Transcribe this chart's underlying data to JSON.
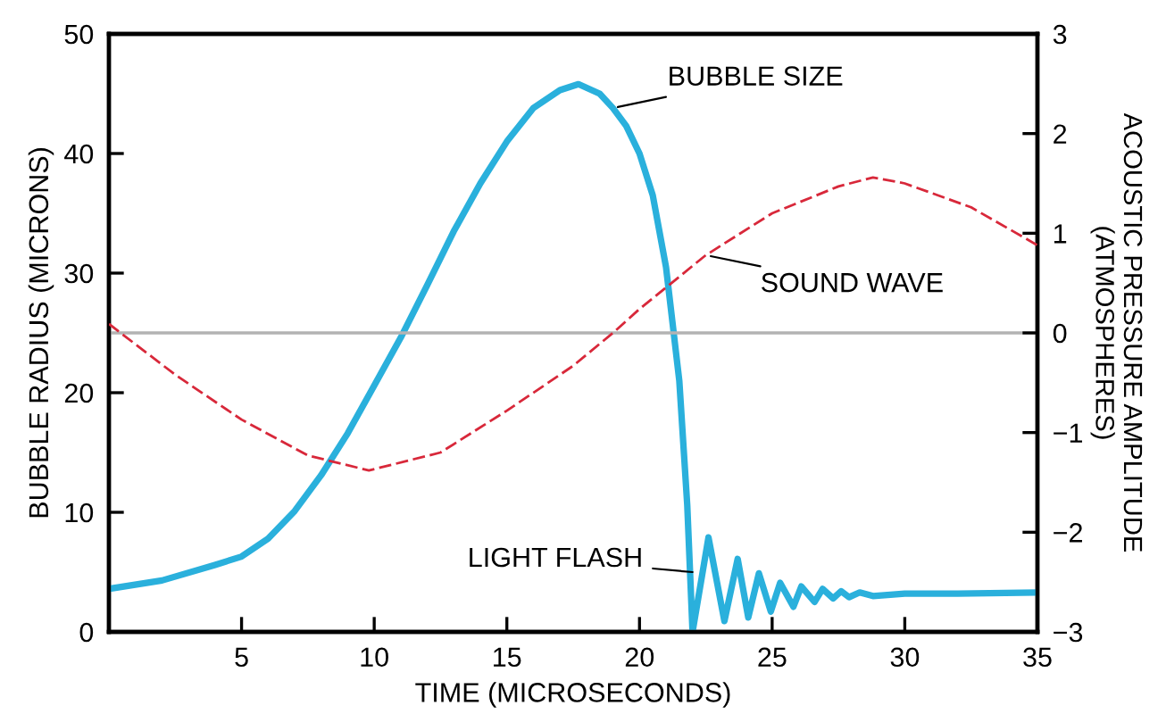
{
  "chart_data": {
    "type": "line",
    "xlabel": "TIME (MICROSECONDS)",
    "ylabel": "BUBBLE RADIUS (MICRONS)",
    "y2label": "ACOUSTIC PRESSURE AMPLITUDE\n(ATMOSPHERES)",
    "xlim": [
      0,
      35
    ],
    "xticks": [
      5,
      10,
      15,
      20,
      25,
      30,
      35
    ],
    "ylim": [
      0,
      50
    ],
    "yticks": [
      0,
      10,
      20,
      30,
      40,
      50
    ],
    "y2lim": [
      -3,
      3
    ],
    "y2ticks": [
      {
        "value": -3,
        "label": "−3"
      },
      {
        "value": -2,
        "label": "−2"
      },
      {
        "value": -1,
        "label": "−1"
      },
      0,
      1,
      2,
      3
    ],
    "series": [
      {
        "name": "BUBBLE SIZE",
        "color": "#2ab0dc",
        "line_style": "solid",
        "x": [
          0,
          2,
          4,
          5,
          6,
          7,
          8,
          9,
          10,
          11,
          12,
          13,
          14,
          15,
          16,
          17,
          17.7,
          18.5,
          19,
          19.5,
          20,
          20.5,
          21,
          21.5,
          21.8,
          22,
          22.6,
          23.2,
          23.7,
          24.1,
          24.5,
          24.95,
          25.3,
          25.8,
          26.1,
          26.6,
          26.9,
          27.3,
          27.6,
          27.9,
          28.3,
          28.8,
          30,
          32,
          35
        ],
        "values": [
          3.6,
          4.3,
          5.6,
          6.3,
          7.8,
          10.1,
          13.1,
          16.6,
          20.6,
          24.6,
          29,
          33.5,
          37.5,
          41,
          43.8,
          45.3,
          45.8,
          45,
          43.8,
          42.3,
          40,
          36.5,
          30.5,
          21,
          10.6,
          0,
          7.9,
          0.9,
          6.1,
          1.2,
          4.9,
          1.7,
          4.1,
          2.1,
          3.8,
          2.5,
          3.6,
          2.8,
          3.4,
          2.9,
          3.3,
          3.0,
          3.2,
          3.2,
          3.3
        ]
      },
      {
        "name": "SOUND WAVE",
        "color": "#d8283a",
        "line_style": "dashed",
        "axis": "y2",
        "x": [
          0,
          2.5,
          5,
          7.5,
          9.8,
          12.5,
          15,
          17.5,
          19,
          20,
          22.5,
          25,
          27.5,
          28.8,
          30,
          32.5,
          35
        ],
        "values": [
          0.09,
          -0.42,
          -0.87,
          -1.23,
          -1.38,
          -1.2,
          -0.78,
          -0.33,
          0,
          0.24,
          0.78,
          1.2,
          1.47,
          1.56,
          1.5,
          1.26,
          0.88
        ]
      }
    ],
    "ref_lines": [
      {
        "axis": "y2",
        "value": 0,
        "color": "#b3b3b3"
      }
    ],
    "annotations": [
      {
        "text": "LIGHT FLASH",
        "x": 22,
        "y": 5
      }
    ],
    "grid": false,
    "legend": false,
    "marker": "none"
  }
}
